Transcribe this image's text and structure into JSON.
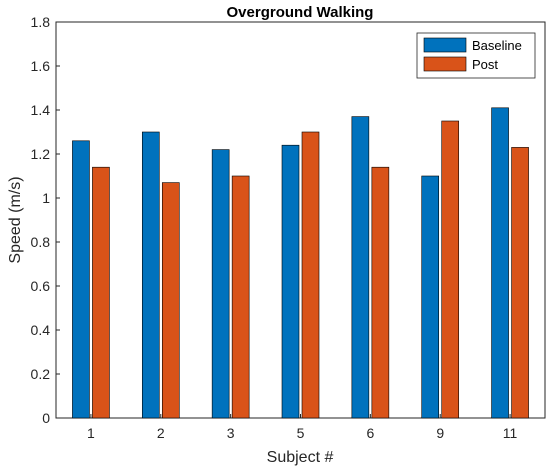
{
  "chart_data": {
    "type": "bar",
    "title": "Overground Walking",
    "xlabel": "Subject #",
    "ylabel": "Speed (m/s)",
    "categories": [
      "1",
      "2",
      "3",
      "5",
      "6",
      "9",
      "11"
    ],
    "series": [
      {
        "name": "Baseline",
        "color": "#0072BD",
        "values": [
          1.26,
          1.3,
          1.22,
          1.24,
          1.37,
          1.1,
          1.41
        ]
      },
      {
        "name": "Post",
        "color": "#D95319",
        "values": [
          1.14,
          1.07,
          1.1,
          1.3,
          1.14,
          1.35,
          1.23
        ]
      }
    ],
    "ylim": [
      0,
      1.8
    ],
    "yticks": [
      "0",
      "0.2",
      "0.4",
      "0.6",
      "0.8",
      "1",
      "1.2",
      "1.4",
      "1.6",
      "1.8"
    ],
    "legend_position": "top-right",
    "grid": false
  }
}
